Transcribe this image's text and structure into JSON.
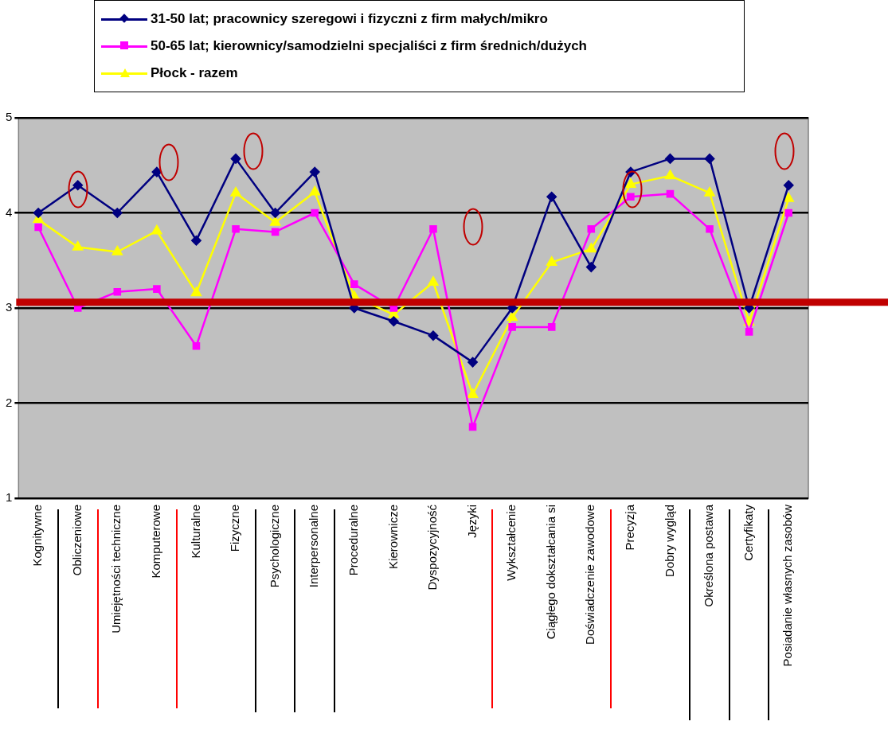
{
  "chart_data": {
    "type": "line",
    "categories": [
      "Kognitywne",
      "Obliczeniowe",
      "Umiejętności techniczne",
      "Komputerowe",
      "Kulturalne",
      "Fizyczne",
      "Psychologiczne",
      "Interpersonalne",
      "Proceduralne",
      "Kierownicze",
      "Dyspozycyjność",
      "Języki",
      "Wykształcenie",
      "Ciągłego dokształcania si",
      "Doświadczenie zawodowe",
      "Precyzja",
      "Dobry wygląd",
      "Określona postawa",
      "Certyfikaty",
      "Posiadanie własnych zasobów"
    ],
    "series": [
      {
        "name": "31-50 lat; pracownicy szeregowi i fizyczni z firm małych/mikro",
        "color": "#000080",
        "marker": "diamond",
        "values": [
          4.0,
          4.29,
          4.0,
          4.43,
          3.71,
          4.57,
          4.0,
          4.43,
          3.0,
          2.86,
          2.71,
          2.43,
          3.0,
          4.17,
          3.43,
          4.43,
          4.57,
          4.57,
          3.0,
          4.29
        ]
      },
      {
        "name": "50-65 lat; kierownicy/samodzielni specjaliści z firm średnich/dużych",
        "color": "#ff00ff",
        "marker": "square",
        "values": [
          3.85,
          3.0,
          3.17,
          3.2,
          2.6,
          3.83,
          3.8,
          4.0,
          3.25,
          3.0,
          3.83,
          1.75,
          2.8,
          2.8,
          3.83,
          4.17,
          4.2,
          3.83,
          2.75,
          4.0
        ]
      },
      {
        "name": "Płock - razem",
        "color": "#ffff00",
        "marker": "triangle",
        "values": [
          3.93,
          3.64,
          3.59,
          3.81,
          3.16,
          4.21,
          3.9,
          4.22,
          3.12,
          2.93,
          3.27,
          2.09,
          2.9,
          3.48,
          3.62,
          4.3,
          4.39,
          4.21,
          2.85,
          4.15
        ]
      }
    ],
    "ylim": [
      1,
      5
    ],
    "yticks": [
      1,
      2,
      3,
      4,
      5
    ],
    "grid": "y",
    "legend": "top",
    "ref_lines": [
      {
        "axis": "y",
        "value": 3.06,
        "color": "#c00000"
      }
    ]
  }
}
